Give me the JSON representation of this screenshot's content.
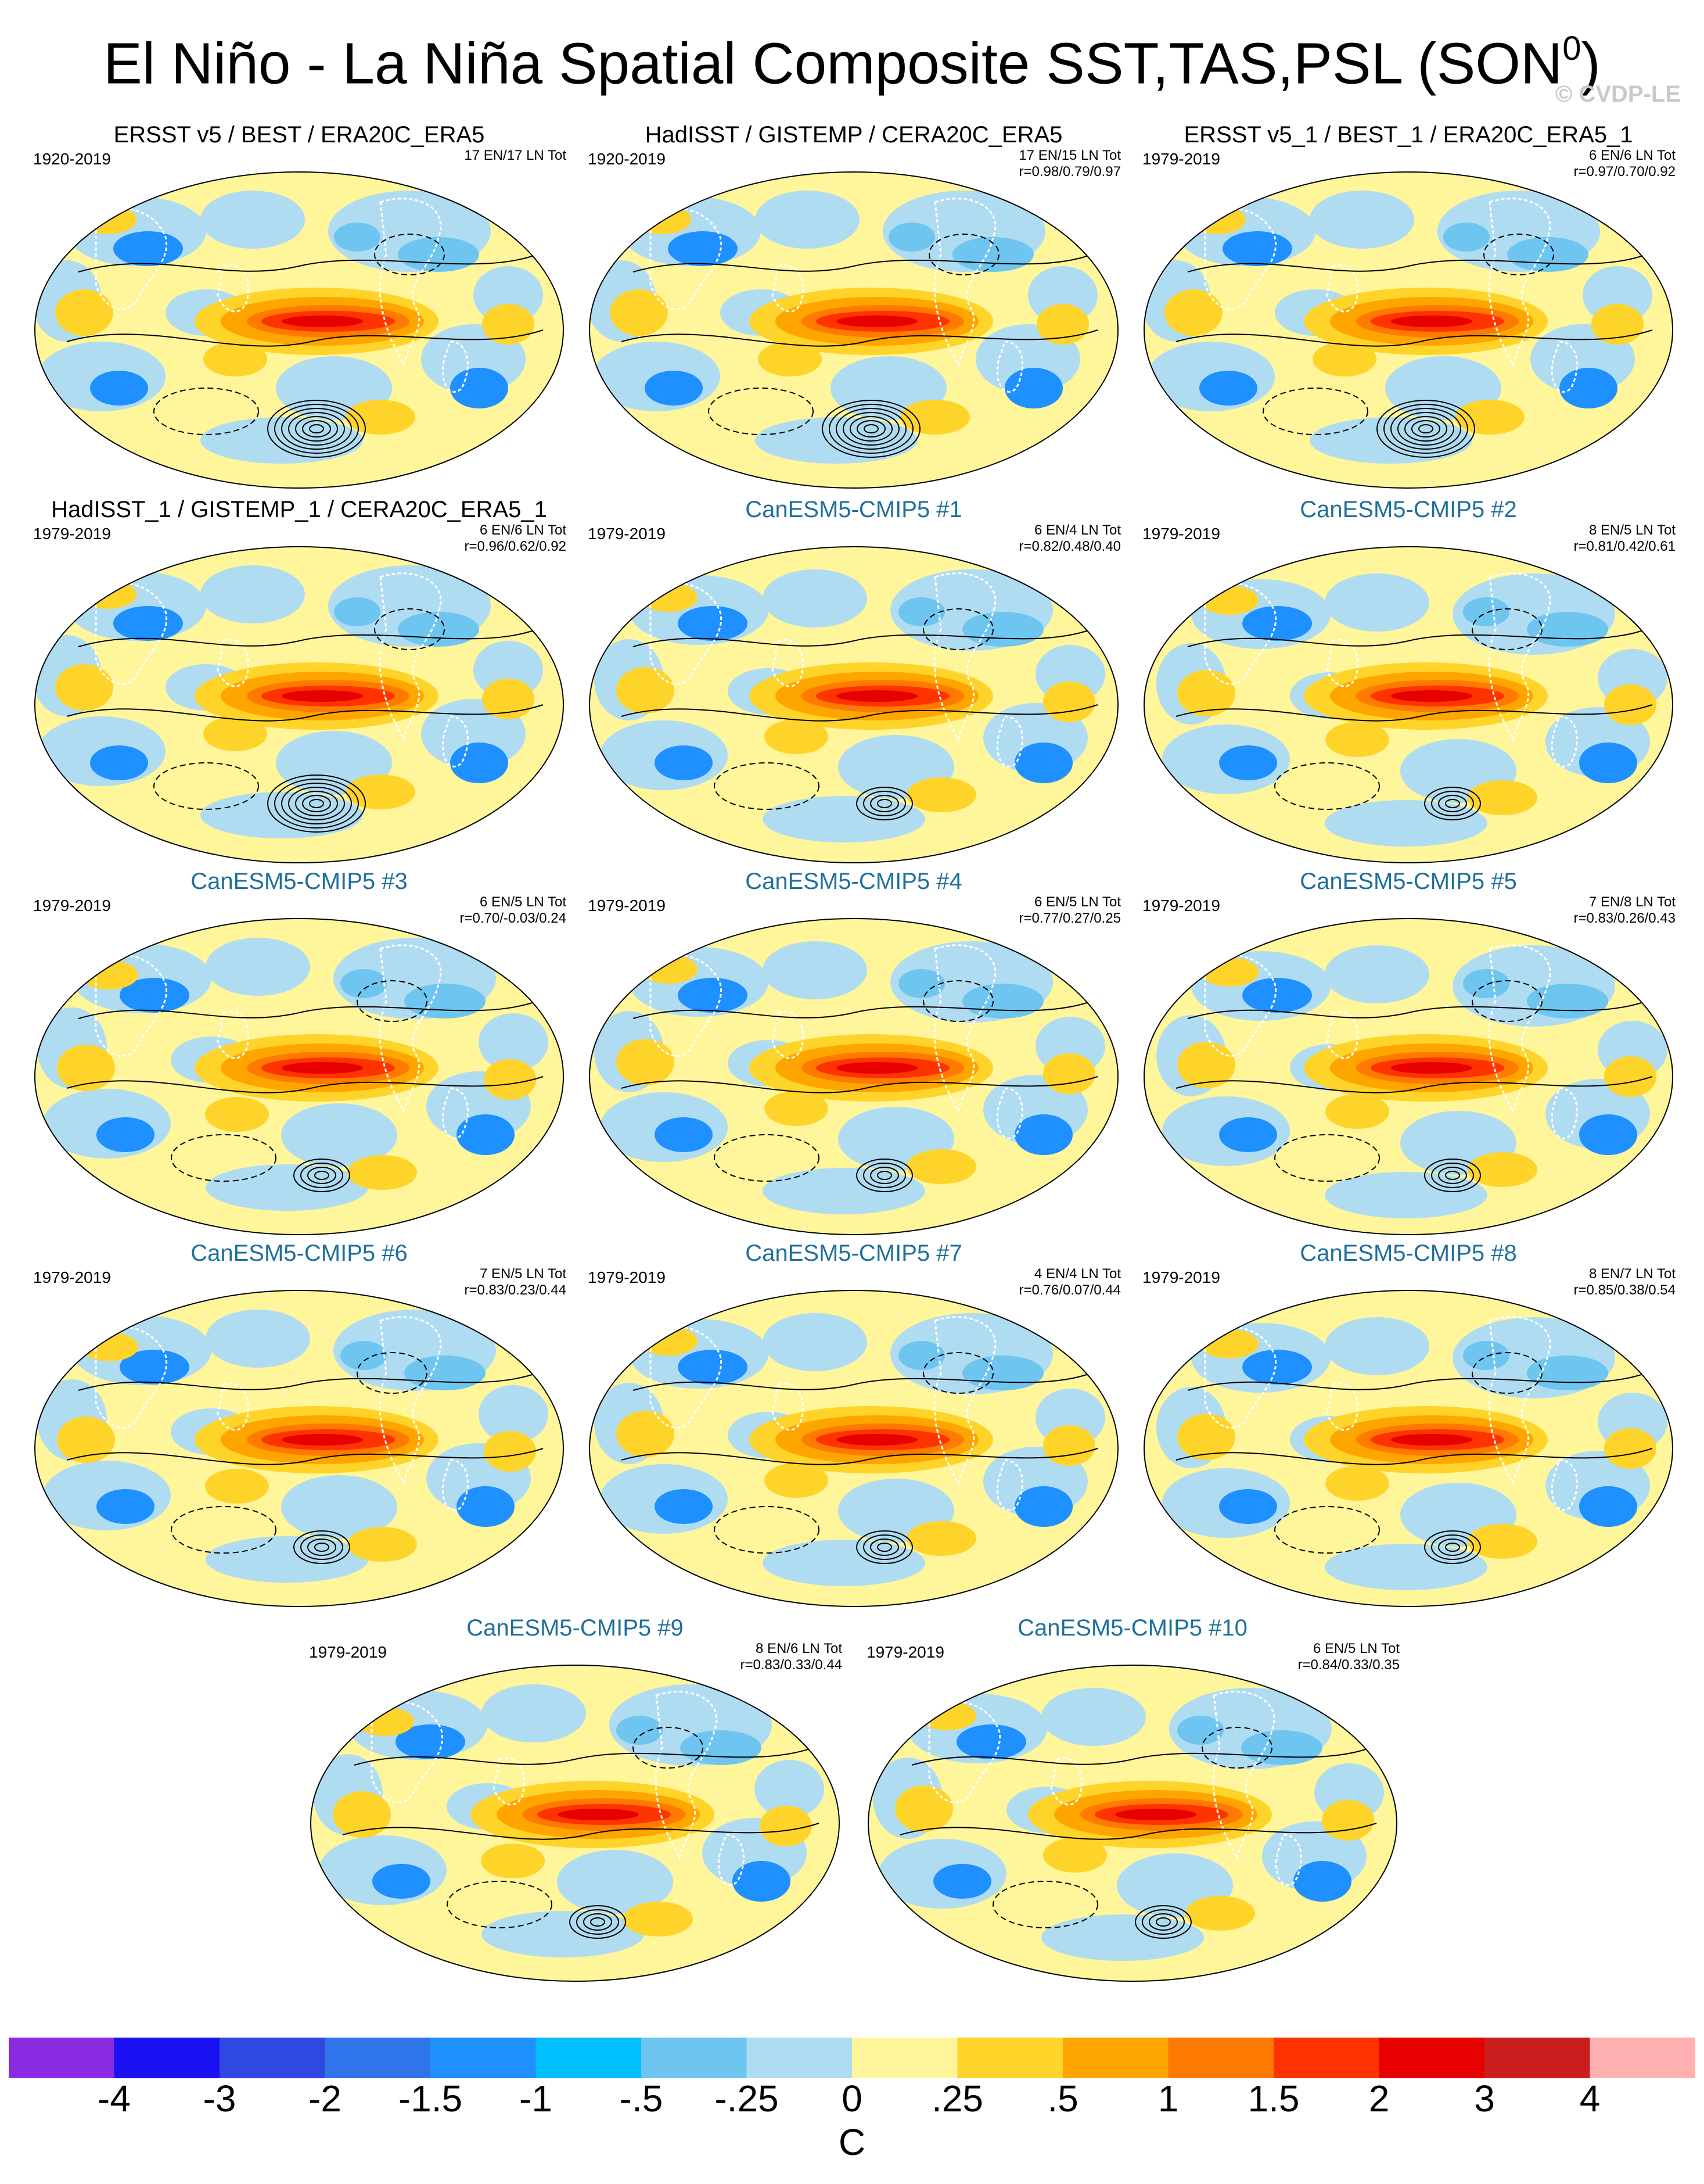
{
  "title": "El Niño - La Niña Spatial Composite SST,TAS,PSL (SON",
  "title_sup": "0",
  "title_end": ")",
  "watermark": "© CVDP-LE",
  "panels": [
    {
      "title": "ERSST v5 / BEST / ERA20C_ERA5",
      "years": "1920-2019",
      "stats1": "17 EN/17 LN Tot",
      "stats2": "",
      "model": false,
      "variant": 0
    },
    {
      "title": "HadISST / GISTEMP / CERA20C_ERA5",
      "years": "1920-2019",
      "stats1": "17 EN/15 LN Tot",
      "stats2": "r=0.98/0.79/0.97",
      "model": false,
      "variant": 0
    },
    {
      "title": "ERSST v5_1 / BEST_1 / ERA20C_ERA5_1",
      "years": "1979-2019",
      "stats1": "6 EN/6 LN Tot",
      "stats2": "r=0.97/0.70/0.92",
      "model": false,
      "variant": 0
    },
    {
      "title": "HadISST_1 / GISTEMP_1 / CERA20C_ERA5_1",
      "years": "1979-2019",
      "stats1": "6 EN/6 LN Tot",
      "stats2": "r=0.96/0.62/0.92",
      "model": false,
      "variant": 0
    },
    {
      "title": "CanESM5-CMIP5 #1",
      "years": "1979-2019",
      "stats1": "6 EN/4 LN Tot",
      "stats2": "r=0.82/0.48/0.40",
      "model": true,
      "variant": 1
    },
    {
      "title": "CanESM5-CMIP5 #2",
      "years": "1979-2019",
      "stats1": "8 EN/5 LN Tot",
      "stats2": "r=0.81/0.42/0.61",
      "model": true,
      "variant": 2
    },
    {
      "title": "CanESM5-CMIP5 #3",
      "years": "1979-2019",
      "stats1": "6 EN/5 LN Tot",
      "stats2": "r=0.70/-0.03/0.24",
      "model": true,
      "variant": 3
    },
    {
      "title": "CanESM5-CMIP5 #4",
      "years": "1979-2019",
      "stats1": "6 EN/5 LN Tot",
      "stats2": "r=0.77/0.27/0.25",
      "model": true,
      "variant": 1
    },
    {
      "title": "CanESM5-CMIP5 #5",
      "years": "1979-2019",
      "stats1": "7 EN/8 LN Tot",
      "stats2": "r=0.83/0.26/0.43",
      "model": true,
      "variant": 2
    },
    {
      "title": "CanESM5-CMIP5 #6",
      "years": "1979-2019",
      "stats1": "7 EN/5 LN Tot",
      "stats2": "r=0.83/0.23/0.44",
      "model": true,
      "variant": 3
    },
    {
      "title": "CanESM5-CMIP5 #7",
      "years": "1979-2019",
      "stats1": "4 EN/4 LN Tot",
      "stats2": "r=0.76/0.07/0.44",
      "model": true,
      "variant": 1
    },
    {
      "title": "CanESM5-CMIP5 #8",
      "years": "1979-2019",
      "stats1": "8 EN/7 LN Tot",
      "stats2": "r=0.85/0.38/0.54",
      "model": true,
      "variant": 2
    },
    {
      "title": "CanESM5-CMIP5 #9",
      "years": "1979-2019",
      "stats1": "8 EN/6 LN Tot",
      "stats2": "r=0.83/0.33/0.44",
      "model": true,
      "variant": 3
    },
    {
      "title": "CanESM5-CMIP5 #10",
      "years": "1979-2019",
      "stats1": "6 EN/5 LN Tot",
      "stats2": "r=0.84/0.33/0.35",
      "model": true,
      "variant": 1
    }
  ],
  "colorbar": {
    "colors": [
      "#8a2be2",
      "#1a12f2",
      "#2e48e0",
      "#2f74e8",
      "#1e90ff",
      "#00bfff",
      "#6ec6f0",
      "#b0dcf2",
      "#fff59a",
      "#ffd42a",
      "#ffa500",
      "#ff7a00",
      "#ff3300",
      "#e60000",
      "#c81e1e",
      "#ffb0b0"
    ],
    "labels": [
      "-4",
      "-3",
      "-2",
      "-1.5",
      "-1",
      "-.5",
      "-.25",
      "0",
      ".25",
      ".5",
      "1",
      "1.5",
      "2",
      "3",
      "4"
    ],
    "units": "C"
  }
}
